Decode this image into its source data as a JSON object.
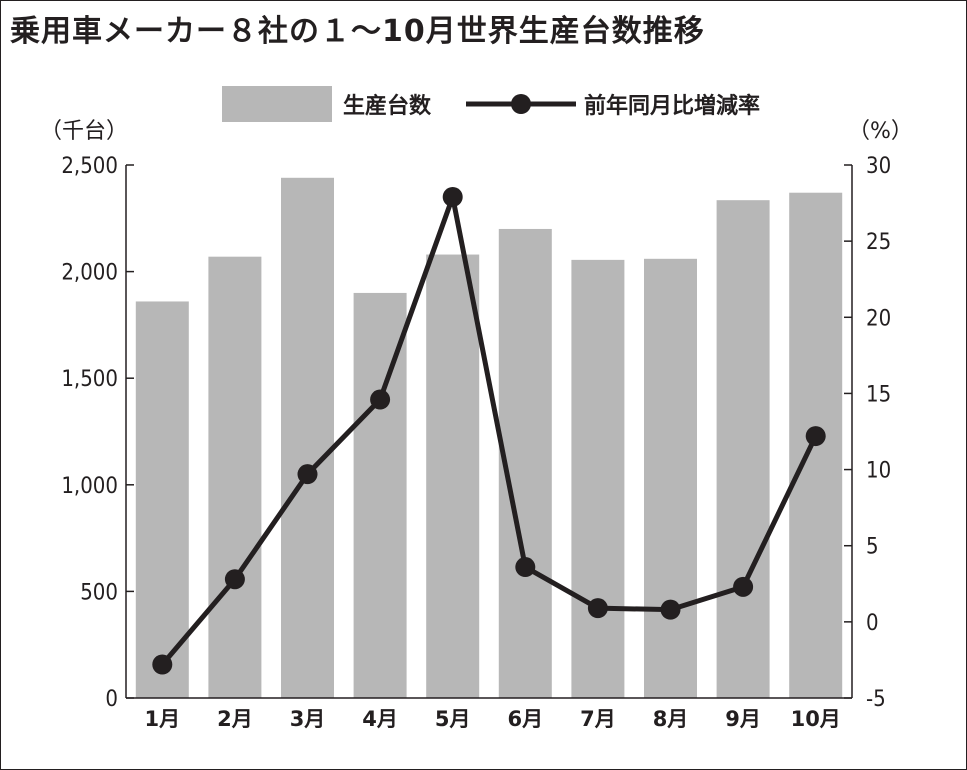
{
  "title": "乗用車メーカー８社の１～10月世界生産台数推移",
  "chart_data": {
    "type": "bar+line",
    "categories": [
      "1月",
      "2月",
      "3月",
      "4月",
      "5月",
      "6月",
      "7月",
      "8月",
      "9月",
      "10月"
    ],
    "series": [
      {
        "name": "生産台数",
        "type": "bar",
        "axis": "left",
        "color": "#b7b7b7",
        "values": [
          1860,
          2070,
          2440,
          1900,
          2080,
          2200,
          2055,
          2060,
          2335,
          2370
        ]
      },
      {
        "name": "前年同月比増減率",
        "type": "line",
        "axis": "right",
        "color": "#231f20",
        "values": [
          -2.8,
          2.8,
          9.7,
          14.6,
          27.9,
          3.6,
          0.9,
          0.8,
          2.3,
          12.2
        ]
      }
    ],
    "left_axis": {
      "unit": "（千台）",
      "ylim": [
        0,
        2500
      ],
      "ticks": [
        0,
        500,
        1000,
        1500,
        2000,
        2500
      ],
      "tick_labels": [
        "0",
        "500",
        "1,000",
        "1,500",
        "2,000",
        "2,500"
      ]
    },
    "right_axis": {
      "unit": "（%）",
      "ylim": [
        -5,
        30
      ],
      "ticks": [
        -5,
        0,
        5,
        10,
        15,
        20,
        25,
        30
      ],
      "tick_labels": [
        "-5",
        "0",
        "5",
        "10",
        "15",
        "20",
        "25",
        "30"
      ]
    },
    "legend_position": "top-center",
    "grid": false
  }
}
